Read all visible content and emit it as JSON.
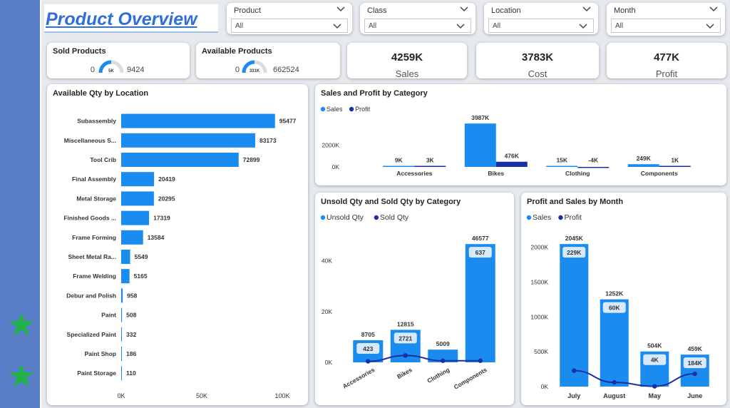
{
  "title": "Product Overview",
  "slicers": [
    {
      "label": "Product",
      "value": "All"
    },
    {
      "label": "Class",
      "value": "All"
    },
    {
      "label": "Location",
      "value": "All"
    },
    {
      "label": "Month",
      "value": "All"
    }
  ],
  "kpis": {
    "sold": {
      "label": "Sold Products",
      "min": "0",
      "center": "5K",
      "max": "9424"
    },
    "available": {
      "label": "Available Products",
      "min": "0",
      "center": "331K",
      "max": "662524"
    },
    "sales": {
      "value": "4259K",
      "label": "Sales"
    },
    "cost": {
      "value": "3783K",
      "label": "Cost"
    },
    "profit": {
      "value": "477K",
      "label": "Profit"
    }
  },
  "colors": {
    "primary": "#1a8cf0",
    "secondary": "#1a2ea6",
    "sidebar": "#5b7ec9",
    "star": "#22b04b",
    "title": "#2f6fd6"
  },
  "icons": {
    "star": "star-icon",
    "dropdown": "chevron-down-icon"
  },
  "chart_data": [
    {
      "id": "qty_by_location",
      "type": "bar",
      "orientation": "horizontal",
      "title": "Available Qty by Location",
      "categories": [
        "Subassembly",
        "Miscellaneous S...",
        "Tool Crib",
        "Final Assembly",
        "Metal Storage",
        "Finished Goods ...",
        "Frame Forming",
        "Sheet Metal Ra...",
        "Frame Welding",
        "Debur and Polish",
        "Paint",
        "Specialized Paint",
        "Paint Shop",
        "Paint Storage"
      ],
      "values": [
        95477,
        83173,
        72899,
        20419,
        20295,
        17319,
        13584,
        5549,
        5165,
        958,
        508,
        332,
        186,
        110
      ],
      "labels": [
        "95477",
        "83173",
        "72899",
        "20419",
        "20295",
        "17319",
        "13584",
        "5549",
        "5165",
        "958",
        "508",
        "332",
        "186",
        "110"
      ],
      "xlim": [
        0,
        100000
      ],
      "ticks": [
        0,
        50000,
        100000
      ],
      "tick_labels": [
        "0K",
        "50K",
        "100K"
      ]
    },
    {
      "id": "sales_profit_category",
      "type": "bar",
      "title": "Sales and Profit by Category",
      "categories": [
        "Accessories",
        "Bikes",
        "Clothing",
        "Components"
      ],
      "series": [
        {
          "name": "Sales",
          "values": [
            9000,
            3987000,
            15000,
            249000
          ],
          "labels": [
            "9K",
            "3987K",
            "15K",
            "249K"
          ]
        },
        {
          "name": "Profit",
          "values": [
            3000,
            476000,
            -4000,
            1000
          ],
          "labels": [
            "3K",
            "476K",
            "-4K",
            "1K"
          ]
        }
      ],
      "ylim": [
        0,
        4000000
      ],
      "ticks": [
        0,
        2000000
      ],
      "tick_labels": [
        "0K",
        "2000K"
      ],
      "legend": "top-left"
    },
    {
      "id": "unsold_sold_category",
      "type": "bar+line",
      "title": "Unsold Qty and Sold Qty by Category",
      "categories": [
        "Accessories",
        "Bikes",
        "Clothing",
        "Components"
      ],
      "series": [
        {
          "name": "Unsold Qty",
          "values": [
            8705,
            12815,
            5009,
            46577
          ],
          "labels": [
            "8705",
            "12815",
            "5009",
            "46577"
          ]
        },
        {
          "name": "Sold Qty",
          "values": [
            423,
            2721,
            637,
            637
          ],
          "labels": [
            "423",
            "2721",
            "",
            "637"
          ]
        }
      ],
      "ylim": [
        0,
        50000
      ],
      "ticks": [
        0,
        20000,
        40000
      ],
      "tick_labels": [
        "0K",
        "20K",
        "40K"
      ],
      "legend": "top-left"
    },
    {
      "id": "profit_sales_month",
      "type": "bar+line",
      "title": "Profit and Sales by Month",
      "categories": [
        "July",
        "August",
        "May",
        "June"
      ],
      "series": [
        {
          "name": "Sales",
          "values": [
            2045000,
            1252000,
            504000,
            459000
          ],
          "labels": [
            "2045K",
            "1252K",
            "504K",
            "459K"
          ]
        },
        {
          "name": "Profit",
          "values": [
            229000,
            60000,
            4000,
            184000
          ],
          "labels": [
            "229K",
            "60K",
            "4K",
            "184K"
          ]
        }
      ],
      "ylim": [
        0,
        2200000
      ],
      "ticks": [
        0,
        500000,
        1000000,
        1500000,
        2000000
      ],
      "tick_labels": [
        "0K",
        "500K",
        "1000K",
        "1500K",
        "2000K"
      ],
      "legend": "top-left"
    }
  ]
}
